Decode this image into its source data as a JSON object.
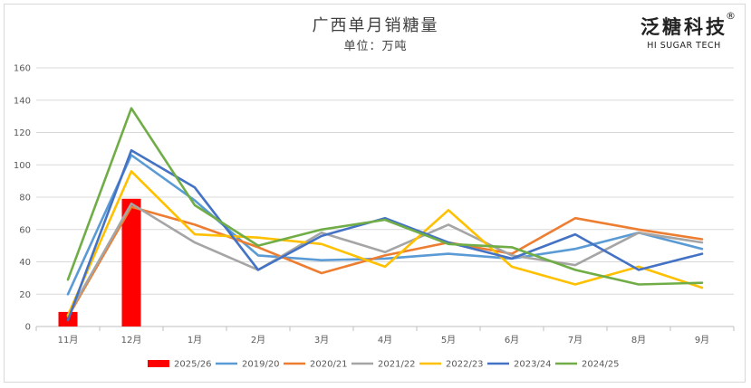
{
  "chart_data": {
    "type": "line",
    "title": "广西单月销糖量",
    "subtitle": "单位：万吨",
    "categories": [
      "11月",
      "12月",
      "1月",
      "2月",
      "3月",
      "4月",
      "5月",
      "6月",
      "7月",
      "8月",
      "9月"
    ],
    "ylim": [
      0,
      160
    ],
    "yticks": [
      0,
      20,
      40,
      60,
      80,
      100,
      120,
      140,
      160
    ],
    "grid": true,
    "legend_position": "bottom",
    "bar_series": {
      "name": "2025/26",
      "color": "#ff0000",
      "values": [
        9,
        79,
        null,
        null,
        null,
        null,
        null,
        null,
        null,
        null,
        null
      ]
    },
    "series": [
      {
        "name": "2019/20",
        "color": "#5b9bd5",
        "values": [
          20,
          106,
          78,
          44,
          41,
          42,
          45,
          42,
          48,
          58,
          48
        ]
      },
      {
        "name": "2020/21",
        "color": "#ed7d31",
        "values": [
          6,
          74,
          63,
          49,
          33,
          44,
          52,
          45,
          67,
          60,
          54
        ]
      },
      {
        "name": "2021/22",
        "color": "#a5a5a5",
        "values": [
          7,
          76,
          52,
          35,
          58,
          46,
          63,
          44,
          38,
          58,
          52
        ]
      },
      {
        "name": "2022/23",
        "color": "#ffc000",
        "values": [
          7,
          96,
          57,
          55,
          51,
          37,
          72,
          37,
          26,
          37,
          24
        ]
      },
      {
        "name": "2023/24",
        "color": "#4472c4",
        "values": [
          4,
          109,
          86,
          35,
          56,
          67,
          52,
          42,
          57,
          35,
          45
        ]
      },
      {
        "name": "2024/25",
        "color": "#70ad47",
        "values": [
          29,
          135,
          75,
          50,
          60,
          66,
          51,
          49,
          35,
          26,
          27
        ]
      }
    ]
  },
  "logo": {
    "name_cn": "泛糖科技",
    "name_en": "HI SUGAR TECH",
    "reg_mark": "®"
  }
}
